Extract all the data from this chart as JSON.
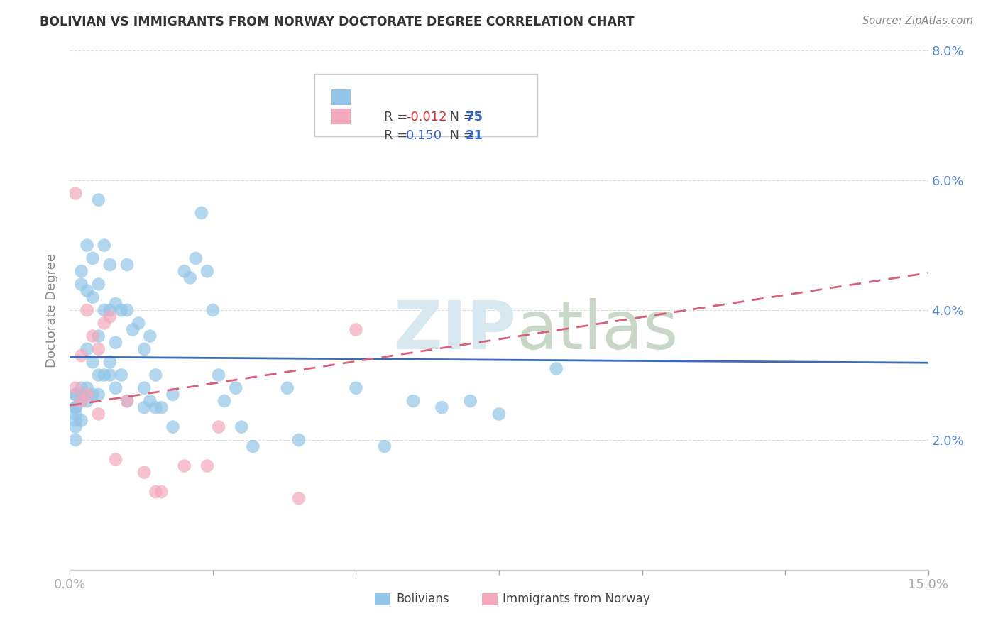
{
  "title": "BOLIVIAN VS IMMIGRANTS FROM NORWAY DOCTORATE DEGREE CORRELATION CHART",
  "source": "Source: ZipAtlas.com",
  "ylabel": "Doctorate Degree",
  "xlim": [
    0.0,
    0.15
  ],
  "ylim": [
    0.0,
    0.08
  ],
  "blue_R": "-0.012",
  "blue_N": "75",
  "pink_R": "0.150",
  "pink_N": "21",
  "blue_color": "#92C5E8",
  "pink_color": "#F4A8BB",
  "blue_line_color": "#3B6CB7",
  "pink_line_color": "#D9607A",
  "watermark_color": "#D8E8F0",
  "blue_points_x": [
    0.001,
    0.001,
    0.001,
    0.001,
    0.001,
    0.001,
    0.001,
    0.001,
    0.002,
    0.002,
    0.002,
    0.002,
    0.002,
    0.002,
    0.003,
    0.003,
    0.003,
    0.003,
    0.003,
    0.004,
    0.004,
    0.004,
    0.004,
    0.005,
    0.005,
    0.005,
    0.005,
    0.005,
    0.006,
    0.006,
    0.006,
    0.007,
    0.007,
    0.007,
    0.007,
    0.008,
    0.008,
    0.008,
    0.009,
    0.009,
    0.01,
    0.01,
    0.01,
    0.011,
    0.012,
    0.013,
    0.013,
    0.013,
    0.014,
    0.014,
    0.015,
    0.015,
    0.016,
    0.018,
    0.018,
    0.02,
    0.021,
    0.022,
    0.023,
    0.024,
    0.025,
    0.026,
    0.027,
    0.029,
    0.03,
    0.032,
    0.038,
    0.04,
    0.05,
    0.055,
    0.06,
    0.065,
    0.07,
    0.075,
    0.085
  ],
  "blue_points_y": [
    0.027,
    0.027,
    0.025,
    0.025,
    0.024,
    0.023,
    0.022,
    0.02,
    0.046,
    0.044,
    0.028,
    0.027,
    0.026,
    0.023,
    0.05,
    0.043,
    0.034,
    0.028,
    0.026,
    0.048,
    0.042,
    0.032,
    0.027,
    0.057,
    0.044,
    0.036,
    0.03,
    0.027,
    0.05,
    0.04,
    0.03,
    0.047,
    0.04,
    0.032,
    0.03,
    0.041,
    0.035,
    0.028,
    0.04,
    0.03,
    0.047,
    0.04,
    0.026,
    0.037,
    0.038,
    0.034,
    0.028,
    0.025,
    0.036,
    0.026,
    0.03,
    0.025,
    0.025,
    0.027,
    0.022,
    0.046,
    0.045,
    0.048,
    0.055,
    0.046,
    0.04,
    0.03,
    0.026,
    0.028,
    0.022,
    0.019,
    0.028,
    0.02,
    0.028,
    0.019,
    0.026,
    0.025,
    0.026,
    0.024,
    0.031
  ],
  "pink_points_x": [
    0.001,
    0.001,
    0.002,
    0.002,
    0.003,
    0.003,
    0.004,
    0.005,
    0.005,
    0.006,
    0.007,
    0.008,
    0.01,
    0.013,
    0.015,
    0.016,
    0.02,
    0.024,
    0.026,
    0.04,
    0.05
  ],
  "pink_points_y": [
    0.058,
    0.028,
    0.033,
    0.026,
    0.04,
    0.027,
    0.036,
    0.034,
    0.024,
    0.038,
    0.039,
    0.017,
    0.026,
    0.015,
    0.012,
    0.012,
    0.016,
    0.016,
    0.022,
    0.011,
    0.037
  ]
}
